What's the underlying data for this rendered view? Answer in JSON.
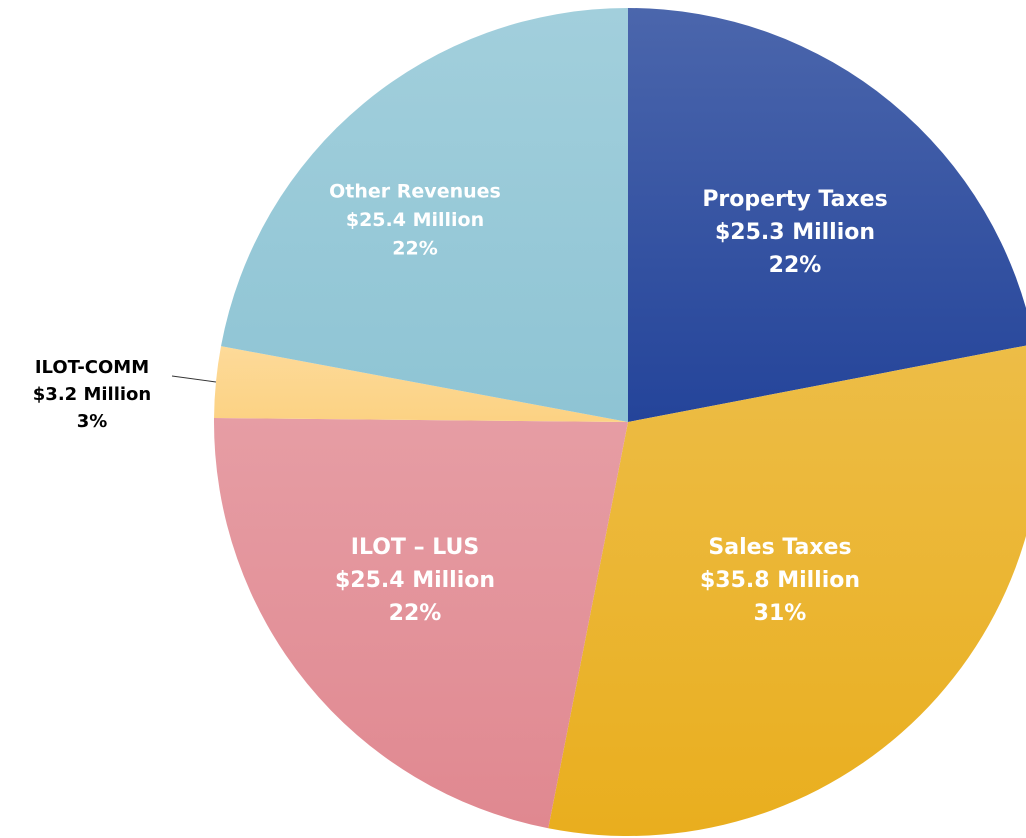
{
  "chart_data": {
    "type": "pie",
    "categories": [
      "Property Taxes",
      "Sales Taxes",
      "ILOT – LUS",
      "ILOT-COMM",
      "Other Revenues"
    ],
    "values": [
      25.3,
      35.8,
      25.4,
      3.2,
      25.4
    ],
    "value_labels": [
      "$25.3 Million",
      "$35.8 Million",
      "$25.4 Million",
      "$3.2 Million",
      "$25.4 Million"
    ],
    "percents": [
      22,
      31,
      22,
      3,
      22
    ],
    "percent_labels": [
      "22%",
      "31%",
      "22%",
      "3%",
      "22%"
    ],
    "colors": [
      "#24449a",
      "#e9ae1e",
      "#e08890",
      "#fcd283",
      "#8ec4d4"
    ]
  }
}
